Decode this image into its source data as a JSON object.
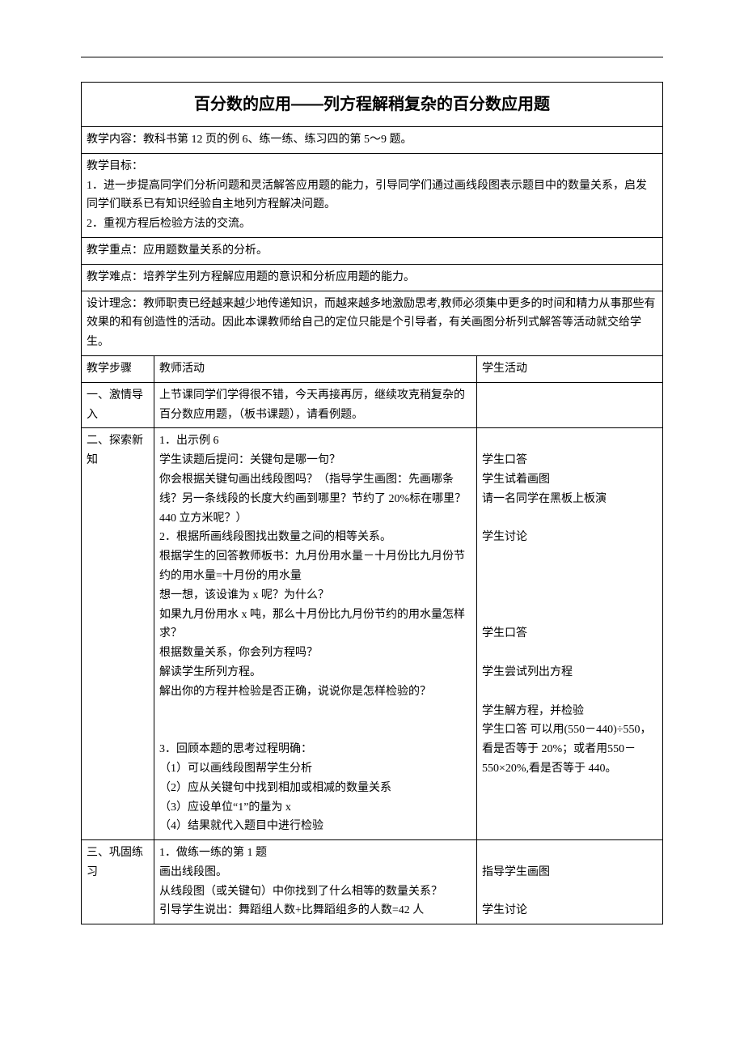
{
  "document": {
    "title": "百分数的应用——列方程解稍复杂的百分数应用题",
    "content_row": "教学内容：教科书第 12 页的例 6、练一练、练习四的第 5～9 题。",
    "goal_label": "教学目标：",
    "goal_1": "1．进一步提高同学们分析问题和灵活解答应用题的能力，引导同学们通过画线段图表示题目中的数量关系，启发同学们联系已有知识经验自主地列方程解决问题。",
    "goal_2": "2．重视方程后检验方法的交流。",
    "focus_row": "教学重点：应用题数量关系的分析。",
    "difficulty_row": "教学难点：培养学生列方程解应用题的意识和分析应用题的能力。",
    "concept_row": "设计理念：教师职责已经越来越少地传递知识，而越来越多地激励思考,教师必须集中更多的时间和精力从事那些有效果的和有创造性的活动。因此本课教师给自己的定位只能是个引导者，有关画图分析列式解答等活动就交给学生。",
    "headers": {
      "step": "教学步骤",
      "teacher": "教师活动",
      "student": "学生活动"
    },
    "steps": [
      {
        "name": "一、激情导入",
        "teacher": "上节课同学们学得很不错，今天再接再厉，继续攻克稍复杂的百分数应用题，（板书课题），请看例题。",
        "student": ""
      },
      {
        "name": "二、探索新知",
        "teacher": "1．出示例 6\n学生读题后提问：关键句是哪一句？\n你会根据关键句画出线段图吗？（指导学生画图：先画哪条线？另一条线段的长度大约画到哪里？节约了 20%标在哪里？440 立方米呢？）\n2．根据所画线段图找出数量之间的相等关系。\n根据学生的回答教师板书：九月份用水量－十月份比九月份节约的用水量=十月份的用水量\n想一想，该设谁为 x 呢？为什么？\n如果九月份用水 x 吨，那么十月份比九月份节约的用水量怎样求？\n根据数量关系，你会列方程吗？\n解读学生所列方程。\n解出你的方程并检验是否正确，说说你是怎样检验的？\n\n\n3．回顾本题的思考过程明确：\n（1）可以画线段图帮学生分析\n（2）应从关键句中找到相加或相减的数量关系\n（3）应设单位“1”的量为 x\n（4）结果就代入题目中进行检验",
        "student": "\n学生口答\n学生试着画图\n请一名同学在黑板上板演\n\n学生讨论\n\n\n\n\n学生口答\n\n学生尝试列出方程\n\n学生解方程，并检验\n学生口答 可以用(550－440)÷550，看是否等于 20%；或者用550－550×20%,看是否等于 440。"
      },
      {
        "name": "三、巩固练习",
        "teacher": "1．做练一练的第 1 题\n画出线段图。\n从线段图（或关键句）中你找到了什么相等的数量关系？\n引导学生说出：舞蹈组人数+比舞蹈组多的人数=42 人",
        "student": "\n指导学生画图\n\n学生讨论"
      }
    ]
  }
}
